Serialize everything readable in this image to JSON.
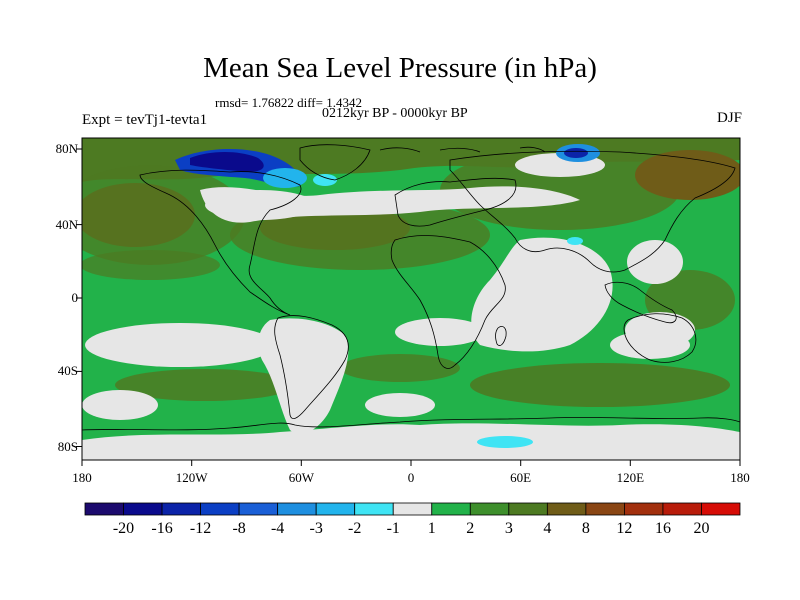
{
  "title": "Mean Sea Level Pressure (in hPa)",
  "rmsd_text": "rmsd= 1.76822 diff= 1.4342",
  "period_text": "0212kyr BP - 0000kyr BP",
  "expt_text": "Expt = tevTj1-tevta1",
  "season_text": "DJF",
  "lon_labels": [
    "180",
    "120W",
    "60W",
    "0",
    "60E",
    "120E",
    "180"
  ],
  "lat_labels": [
    "80N",
    "40N",
    "0",
    "40S",
    "80S"
  ],
  "colorbar": {
    "colors": [
      "#1c0a6e",
      "#0a0a8c",
      "#0b23a8",
      "#0b3fc4",
      "#1a5fd6",
      "#1e8fe0",
      "#22b4ec",
      "#3fe4f4",
      "#e6e6e6",
      "#22b24a",
      "#3e8f2c",
      "#4d7a22",
      "#6f5c18",
      "#8a4614",
      "#a2300e",
      "#b81c0a",
      "#d60c06"
    ],
    "labels": [
      "-20",
      "-16",
      "-12",
      "-8",
      "-4",
      "-3",
      "-2",
      "-1",
      "1",
      "2",
      "3",
      "4",
      "8",
      "12",
      "16",
      "20"
    ]
  },
  "colors": {
    "ocean_green": "#22b24a",
    "neutral_gray": "#e6e6e6",
    "positive_brown": "#5d6d22",
    "negative_blue": "#0b3fc4"
  }
}
